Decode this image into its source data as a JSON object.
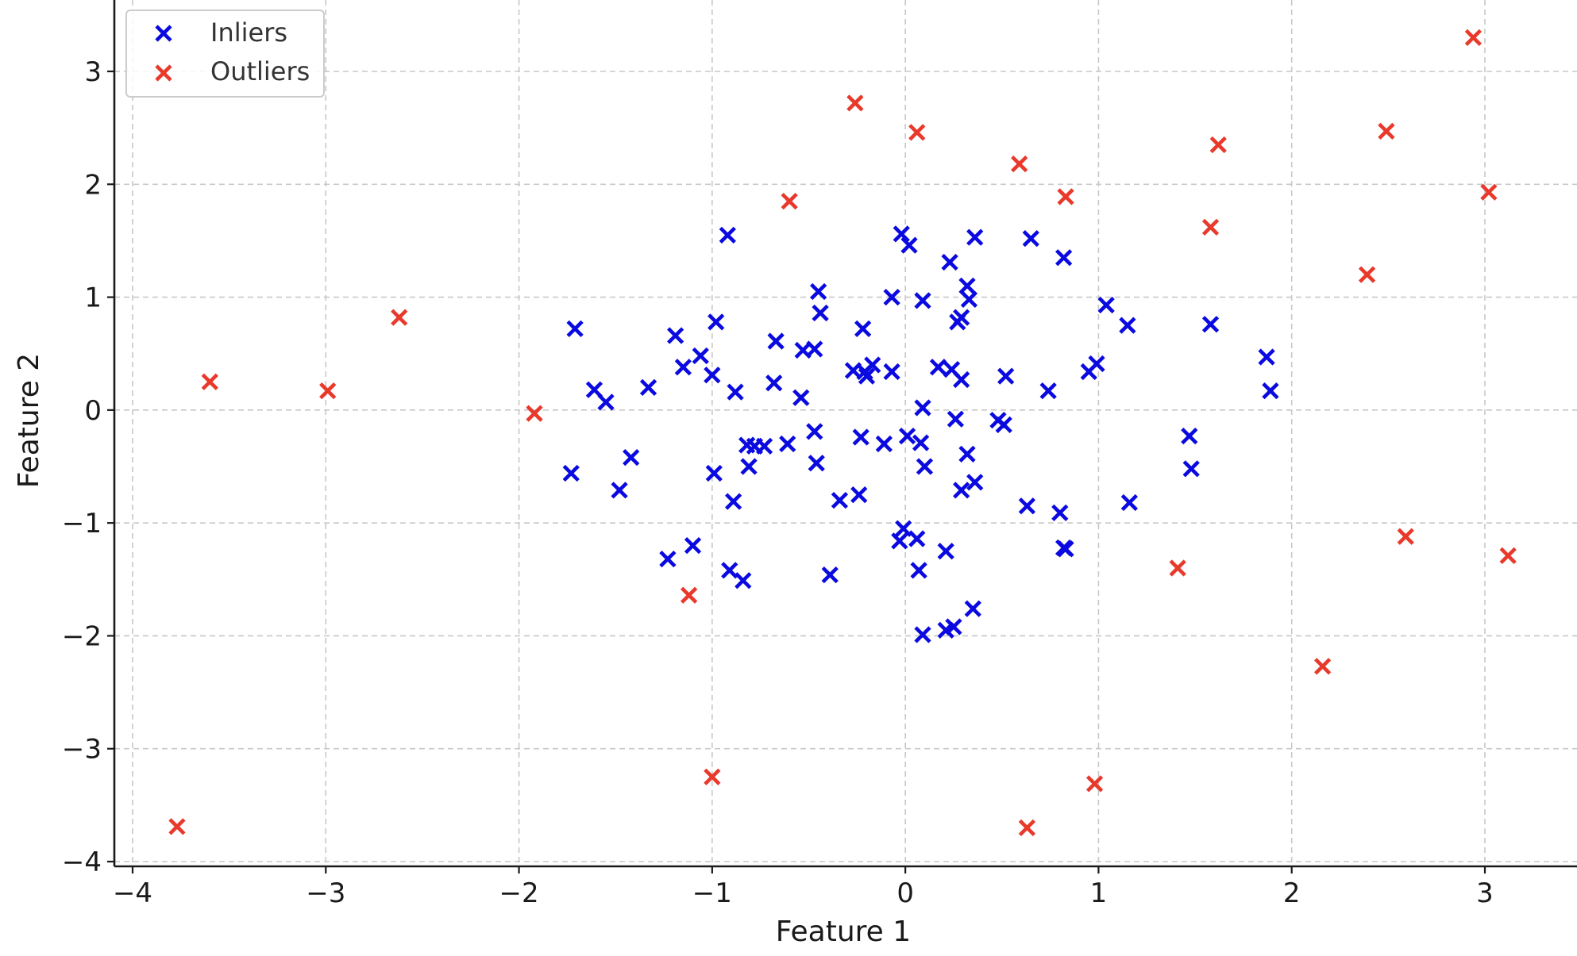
{
  "chart_data": {
    "type": "scatter",
    "title": "",
    "xlabel": "Feature 1",
    "ylabel": "Feature 2",
    "xlim": [
      -4.1,
      3.5
    ],
    "ylim": [
      -4.05,
      3.6
    ],
    "xticks": [
      -4,
      -3,
      -2,
      -1,
      0,
      1,
      2,
      3
    ],
    "yticks": [
      -4,
      -3,
      -2,
      -1,
      0,
      1,
      2,
      3
    ],
    "grid": true,
    "legend_position": "upper-left",
    "marker": "x",
    "series": [
      {
        "name": "Inliers",
        "color": "#0a0ae0",
        "points": [
          [
            -0.92,
            1.55
          ],
          [
            -0.02,
            1.56
          ],
          [
            0.02,
            1.46
          ],
          [
            0.36,
            1.53
          ],
          [
            0.65,
            1.52
          ],
          [
            0.82,
            1.35
          ],
          [
            0.23,
            1.31
          ],
          [
            -0.45,
            1.05
          ],
          [
            0.32,
            1.1
          ],
          [
            0.33,
            0.98
          ],
          [
            0.09,
            0.97
          ],
          [
            -0.07,
            1.0
          ],
          [
            1.04,
            0.93
          ],
          [
            -0.44,
            0.86
          ],
          [
            0.29,
            0.82
          ],
          [
            0.27,
            0.78
          ],
          [
            1.15,
            0.75
          ],
          [
            1.58,
            0.76
          ],
          [
            -1.71,
            0.72
          ],
          [
            -0.98,
            0.78
          ],
          [
            -0.22,
            0.72
          ],
          [
            -1.19,
            0.66
          ],
          [
            -0.67,
            0.61
          ],
          [
            -1.06,
            0.48
          ],
          [
            -0.53,
            0.53
          ],
          [
            -0.47,
            0.54
          ],
          [
            -1.15,
            0.38
          ],
          [
            -1.0,
            0.31
          ],
          [
            -0.27,
            0.35
          ],
          [
            -0.21,
            0.34
          ],
          [
            -0.17,
            0.4
          ],
          [
            -0.2,
            0.3
          ],
          [
            -0.07,
            0.34
          ],
          [
            0.17,
            0.38
          ],
          [
            0.24,
            0.36
          ],
          [
            0.29,
            0.27
          ],
          [
            0.52,
            0.3
          ],
          [
            0.95,
            0.34
          ],
          [
            0.99,
            0.41
          ],
          [
            1.87,
            0.47
          ],
          [
            1.89,
            0.17
          ],
          [
            0.74,
            0.17
          ],
          [
            -1.61,
            0.18
          ],
          [
            -1.55,
            0.07
          ],
          [
            -1.33,
            0.2
          ],
          [
            -0.88,
            0.16
          ],
          [
            -0.68,
            0.24
          ],
          [
            -0.54,
            0.11
          ],
          [
            0.09,
            0.02
          ],
          [
            0.26,
            -0.08
          ],
          [
            0.48,
            -0.09
          ],
          [
            0.51,
            -0.13
          ],
          [
            -0.47,
            -0.19
          ],
          [
            -0.23,
            -0.24
          ],
          [
            0.01,
            -0.23
          ],
          [
            0.08,
            -0.29
          ],
          [
            -0.61,
            -0.3
          ],
          [
            -0.11,
            -0.3
          ],
          [
            -0.73,
            -0.32
          ],
          [
            -0.82,
            -0.31
          ],
          [
            -0.78,
            -0.32
          ],
          [
            1.47,
            -0.23
          ],
          [
            0.32,
            -0.39
          ],
          [
            -1.42,
            -0.42
          ],
          [
            -0.46,
            -0.47
          ],
          [
            -0.81,
            -0.5
          ],
          [
            0.1,
            -0.5
          ],
          [
            1.48,
            -0.52
          ],
          [
            -0.99,
            -0.56
          ],
          [
            -1.73,
            -0.56
          ],
          [
            0.36,
            -0.64
          ],
          [
            0.29,
            -0.71
          ],
          [
            -1.48,
            -0.71
          ],
          [
            -0.24,
            -0.75
          ],
          [
            -0.34,
            -0.8
          ],
          [
            -0.89,
            -0.81
          ],
          [
            0.63,
            -0.85
          ],
          [
            1.16,
            -0.82
          ],
          [
            0.8,
            -0.91
          ],
          [
            -0.01,
            -1.05
          ],
          [
            -0.03,
            -1.16
          ],
          [
            0.06,
            -1.14
          ],
          [
            -1.1,
            -1.2
          ],
          [
            0.82,
            -1.22
          ],
          [
            0.83,
            -1.23
          ],
          [
            0.21,
            -1.25
          ],
          [
            -1.23,
            -1.32
          ],
          [
            -0.91,
            -1.42
          ],
          [
            0.07,
            -1.42
          ],
          [
            -0.84,
            -1.51
          ],
          [
            -0.39,
            -1.46
          ],
          [
            0.35,
            -1.76
          ],
          [
            0.25,
            -1.92
          ],
          [
            0.21,
            -1.95
          ],
          [
            0.09,
            -1.99
          ]
        ]
      },
      {
        "name": "Outliers",
        "color": "#e8392b",
        "points": [
          [
            2.94,
            3.3
          ],
          [
            -0.26,
            2.72
          ],
          [
            0.06,
            2.46
          ],
          [
            2.49,
            2.47
          ],
          [
            1.62,
            2.35
          ],
          [
            0.59,
            2.18
          ],
          [
            3.02,
            1.93
          ],
          [
            0.83,
            1.89
          ],
          [
            -0.6,
            1.85
          ],
          [
            1.58,
            1.62
          ],
          [
            2.39,
            1.2
          ],
          [
            -2.62,
            0.82
          ],
          [
            -3.6,
            0.25
          ],
          [
            -2.99,
            0.17
          ],
          [
            -1.92,
            -0.03
          ],
          [
            2.59,
            -1.12
          ],
          [
            3.12,
            -1.29
          ],
          [
            1.41,
            -1.4
          ],
          [
            -1.12,
            -1.64
          ],
          [
            2.16,
            -2.27
          ],
          [
            -1.0,
            -3.25
          ],
          [
            0.98,
            -3.31
          ],
          [
            -3.77,
            -3.69
          ],
          [
            0.63,
            -3.7
          ]
        ]
      }
    ]
  }
}
